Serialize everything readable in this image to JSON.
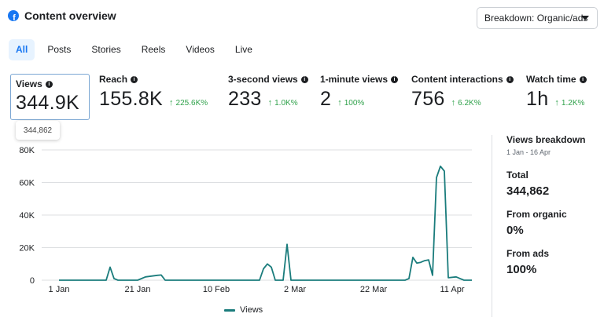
{
  "header": {
    "title": "Content overview",
    "icon": "facebook-icon",
    "icon_glyph": "f"
  },
  "breakdown": {
    "label": "Breakdown: Organic/ads"
  },
  "tabs": [
    {
      "label": "All",
      "active": true
    },
    {
      "label": "Posts"
    },
    {
      "label": "Stories"
    },
    {
      "label": "Reels"
    },
    {
      "label": "Videos"
    },
    {
      "label": "Live"
    }
  ],
  "metrics": [
    {
      "label": "Views",
      "value": "344.9K",
      "delta": "",
      "selected": true
    },
    {
      "label": "Reach",
      "value": "155.8K",
      "delta": "225.6K%"
    },
    {
      "label": "3-second views",
      "value": "233",
      "delta": "1.0K%"
    },
    {
      "label": "1-minute views",
      "value": "2",
      "delta": "100%"
    },
    {
      "label": "Content interactions",
      "value": "756",
      "delta": "6.2K%"
    },
    {
      "label": "Watch time",
      "value": "1h",
      "delta": "1.2K%"
    }
  ],
  "tooltip": {
    "value": "344,862"
  },
  "chart_data": {
    "type": "line",
    "title": "",
    "xlabel": "",
    "ylabel": "",
    "x_tick_labels": [
      "1 Jan",
      "21 Jan",
      "10 Feb",
      "2 Mar",
      "22 Mar",
      "11 Apr"
    ],
    "y_tick_labels": [
      "0",
      "20K",
      "40K",
      "60K",
      "80K"
    ],
    "ylim": [
      0,
      80000
    ],
    "x_range_days": [
      0,
      105
    ],
    "grid": true,
    "legend": "bottom-center",
    "series": [
      {
        "name": "Views",
        "color": "#1a7c7c",
        "points": [
          [
            0,
            0
          ],
          [
            12,
            0
          ],
          [
            13,
            8000
          ],
          [
            14,
            1000
          ],
          [
            15,
            0
          ],
          [
            20,
            0
          ],
          [
            22,
            2000
          ],
          [
            25,
            3000
          ],
          [
            26,
            3200
          ],
          [
            27,
            0
          ],
          [
            51,
            0
          ],
          [
            52,
            7000
          ],
          [
            53,
            10000
          ],
          [
            54,
            8000
          ],
          [
            55,
            0
          ],
          [
            57,
            0
          ],
          [
            58,
            22000
          ],
          [
            59,
            0
          ],
          [
            88,
            0
          ],
          [
            89,
            1000
          ],
          [
            90,
            14000
          ],
          [
            91,
            10500
          ],
          [
            92,
            11000
          ],
          [
            93,
            12000
          ],
          [
            94,
            12500
          ],
          [
            95,
            3000
          ],
          [
            96,
            63000
          ],
          [
            97,
            70000
          ],
          [
            98,
            67000
          ],
          [
            99,
            1500
          ],
          [
            101,
            2000
          ],
          [
            102,
            1000
          ],
          [
            103,
            0
          ],
          [
            105,
            0
          ]
        ]
      }
    ]
  },
  "legend": {
    "label": "Views",
    "color": "#1a7c7c"
  },
  "side": {
    "title": "Views breakdown",
    "range": "1 Jan - 16 Apr",
    "total_label": "Total",
    "total_value": "344,862",
    "organic_label": "From organic",
    "organic_value": "0%",
    "ads_label": "From ads",
    "ads_value": "100%"
  }
}
